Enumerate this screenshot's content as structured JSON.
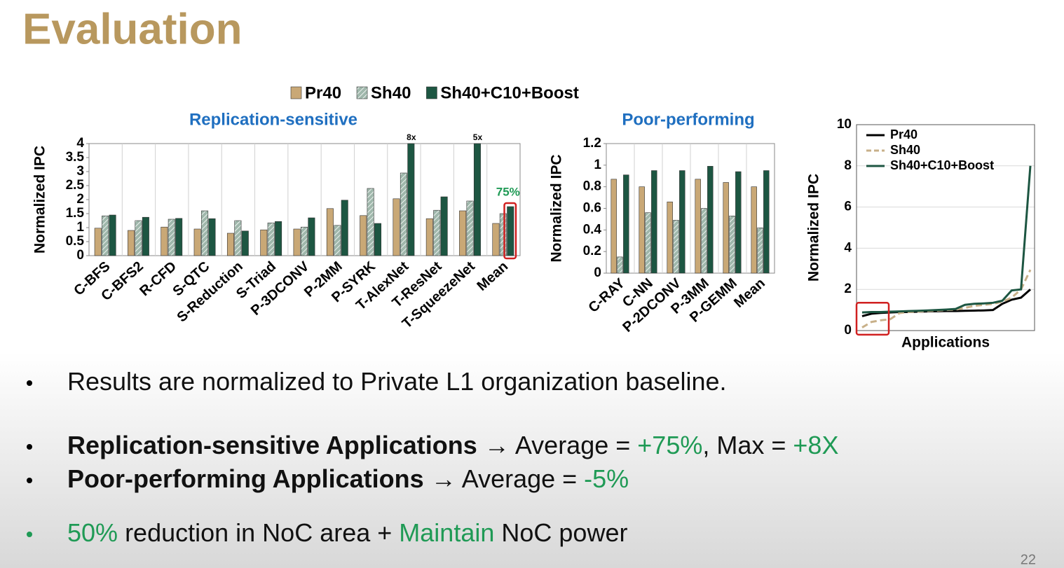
{
  "slide": {
    "title": "Evaluation",
    "page_number": "22",
    "bullets": [
      {
        "segments": [
          {
            "text": "Results are normalized to Private L1 organization baseline."
          }
        ]
      },
      {
        "segments": [
          {
            "text": "Replication-sensitive Applications",
            "bold": true
          },
          {
            "text": " → Average = "
          },
          {
            "text": "+75%",
            "color": "#1f9a55"
          },
          {
            "text": ", Max = "
          },
          {
            "text": "+8X",
            "color": "#1f9a55"
          }
        ]
      },
      {
        "segments": [
          {
            "text": "Poor-performing Applications",
            "bold": true
          },
          {
            "text": " → Average = "
          },
          {
            "text": "-5%",
            "color": "#1f9a55"
          }
        ]
      },
      {
        "bullet_color": "#1f9a55",
        "segments": [
          {
            "text": "50%",
            "color": "#1f9a55"
          },
          {
            "text": " reduction in NoC area + "
          },
          {
            "text": "Maintain",
            "color": "#1f9a55"
          },
          {
            "text": " NoC power"
          }
        ]
      }
    ]
  },
  "chart_data": [
    {
      "type": "bar",
      "title": "Replication-sensitive",
      "y_label": "Normalized IPC",
      "categories": [
        "C-BFS",
        "C-BFS2",
        "R-CFD",
        "S-QTC",
        "S-Reduction",
        "S-Triad",
        "P-3DCONV",
        "P-2MM",
        "P-SYRK",
        "T-AlexNet",
        "T-ResNet",
        "T-SqueezeNet",
        "Mean"
      ],
      "series": [
        {
          "name": "Pr40",
          "color": "#c9a876",
          "values": [
            0.98,
            0.9,
            1.02,
            0.95,
            0.8,
            0.92,
            0.95,
            1.68,
            1.43,
            2.03,
            1.32,
            1.6,
            1.15
          ]
        },
        {
          "name": "Sh40",
          "color": "#9fb7ab",
          "hatch": true,
          "values": [
            1.42,
            1.25,
            1.3,
            1.6,
            1.25,
            1.17,
            1.02,
            1.08,
            2.4,
            2.95,
            1.62,
            1.95,
            1.5
          ]
        },
        {
          "name": "Sh40+C10+Boost",
          "color": "#1d5642",
          "values": [
            1.45,
            1.37,
            1.33,
            1.32,
            0.88,
            1.22,
            1.35,
            1.98,
            1.15,
            8,
            2.1,
            5,
            1.75
          ],
          "value_labels": [
            null,
            null,
            null,
            null,
            null,
            null,
            null,
            null,
            null,
            "8x",
            null,
            "5x",
            null
          ]
        }
      ],
      "annotations": [
        {
          "text": "75%",
          "color": "#1f9a55"
        }
      ],
      "ylim": [
        0,
        4
      ],
      "yticks": [
        0,
        0.5,
        1,
        1.5,
        2,
        2.5,
        3,
        3.5,
        4
      ]
    },
    {
      "type": "bar",
      "title": "Poor-performing",
      "y_label": "Normalized IPC",
      "categories": [
        "C-RAY",
        "C-NN",
        "P-2DCONV",
        "P-3MM",
        "P-GEMM",
        "Mean"
      ],
      "series": [
        {
          "color": "#c9a876",
          "values": [
            0.87,
            0.8,
            0.66,
            0.87,
            0.84,
            0.8
          ]
        },
        {
          "color": "#9fb7ab",
          "hatch": true,
          "values": [
            0.15,
            0.56,
            0.49,
            0.6,
            0.53,
            0.42
          ]
        },
        {
          "color": "#1d5642",
          "values": [
            0.91,
            0.95,
            0.95,
            0.99,
            0.94,
            0.95
          ]
        }
      ],
      "ylim": [
        0,
        1.2
      ],
      "yticks": [
        0,
        0.2,
        0.4,
        0.6,
        0.8,
        1,
        1.2
      ]
    },
    {
      "type": "line",
      "x_label": "Applications",
      "y_label": "Normalized IPC",
      "grid": true,
      "legend": "top-left",
      "categories": [
        null,
        null,
        null,
        null,
        null,
        null,
        null,
        null,
        null,
        null,
        null,
        null,
        null,
        null,
        null,
        null,
        null,
        null,
        null
      ],
      "series": [
        {
          "name": "Pr40",
          "color": "#000000",
          "values": [
            0.7,
            0.82,
            0.86,
            0.88,
            0.9,
            0.9,
            0.92,
            0.93,
            0.94,
            0.95,
            0.95,
            0.96,
            0.97,
            0.98,
            1.0,
            1.3,
            1.5,
            1.6,
            2.0
          ]
        },
        {
          "name": "Sh40",
          "color": "#c8b089",
          "dashed": true,
          "values": [
            0.15,
            0.42,
            0.5,
            0.55,
            0.85,
            0.9,
            0.92,
            0.95,
            0.97,
            1.0,
            1.02,
            1.1,
            1.2,
            1.25,
            1.3,
            1.4,
            1.6,
            2.0,
            2.95
          ]
        },
        {
          "name": "Sh40+C10+Boost",
          "color": "#1d5642",
          "values": [
            0.88,
            0.9,
            0.9,
            0.92,
            0.93,
            0.95,
            0.96,
            0.98,
            1.0,
            1.02,
            1.05,
            1.25,
            1.3,
            1.32,
            1.35,
            1.45,
            1.95,
            2.0,
            8.0
          ]
        }
      ],
      "ylim": [
        0,
        10
      ],
      "yticks": [
        0,
        2,
        4,
        6,
        8,
        10
      ]
    }
  ]
}
